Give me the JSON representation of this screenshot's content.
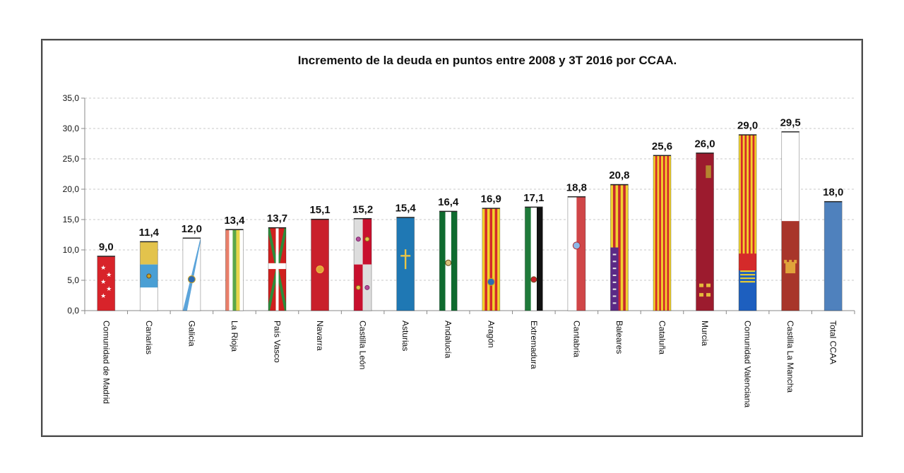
{
  "chart_data": {
    "type": "bar",
    "title": "Incremento de la deuda en puntos entre 2008 y 3T 2016 por CCAA.",
    "xlabel": "",
    "ylabel": "",
    "ylim": [
      0,
      35
    ],
    "yticks": [
      "0,0",
      "5,0",
      "10,0",
      "15,0",
      "20,0",
      "25,0",
      "30,0",
      "35,0"
    ],
    "grid": true,
    "categories": [
      "Comunidad de Madrid",
      "Canarias",
      "Galicia",
      "La Rioja",
      "País Vasco",
      "Navarra",
      "Castilla León",
      "Asturias",
      "Andalucía",
      "Aragón",
      "Extremadura",
      "Cantabria",
      "Baleares",
      "Cataluña",
      "Murcia",
      "Comunidad Valenciana",
      "Castilla La Mancha",
      "Total CCAA"
    ],
    "values": [
      9.0,
      11.4,
      12.0,
      13.4,
      13.7,
      15.1,
      15.2,
      15.4,
      16.4,
      16.9,
      17.1,
      18.8,
      20.8,
      25.6,
      26.0,
      29.0,
      29.5,
      18.0
    ],
    "value_labels": [
      "9,0",
      "11,4",
      "12,0",
      "13,4",
      "13,7",
      "15,1",
      "15,2",
      "15,4",
      "16,4",
      "16,9",
      "17,1",
      "18,8",
      "20,8",
      "25,6",
      "26,0",
      "29,0",
      "29,5",
      "18,0"
    ],
    "bar_fill": [
      "flag-madrid",
      "flag-canarias",
      "flag-galicia",
      "flag-larioja",
      "flag-paisvasco",
      "flag-navarra",
      "flag-castillaleon",
      "flag-asturias",
      "flag-andalucia",
      "flag-aragon",
      "flag-extremadura",
      "flag-cantabria",
      "flag-baleares",
      "flag-cataluna",
      "flag-murcia",
      "flag-valencia",
      "flag-castillalamancha",
      "solid-blue"
    ],
    "colors": {
      "total_bar": "#4f81bd",
      "gridline": "#c8c8c8",
      "axis": "#888888"
    }
  }
}
